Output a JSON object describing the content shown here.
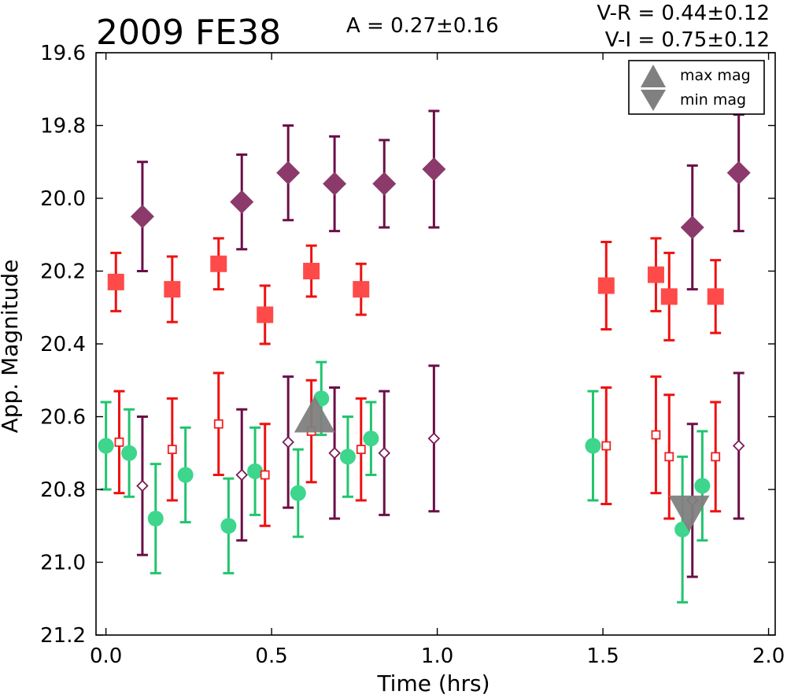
{
  "chart_data": {
    "type": "scatter",
    "title": "2009 FE38",
    "annotations": {
      "amplitude": "A  = 0.27±0.16",
      "v_r": "V-R = 0.44±0.12",
      "v_i": "V-I  = 0.75±0.12"
    },
    "xlabel": "Time (hrs)",
    "ylabel": "App. Magnitude",
    "xlim": [
      -0.03,
      2.02
    ],
    "ylim": [
      21.2,
      19.6
    ],
    "y_inverted": true,
    "grid": false,
    "x_ticks": [
      "0.0",
      "0.5",
      "1.0",
      "1.5",
      "2.0"
    ],
    "x_tick_values": [
      0.0,
      0.5,
      1.0,
      1.5,
      2.0
    ],
    "y_ticks": [
      "19.6",
      "19.8",
      "20.0",
      "20.2",
      "20.4",
      "20.6",
      "20.8",
      "21.0",
      "21.2"
    ],
    "y_tick_values": [
      19.6,
      19.8,
      20.0,
      20.2,
      20.4,
      20.6,
      20.8,
      21.0,
      21.2
    ],
    "legend": {
      "position": "top-right",
      "entries": [
        {
          "label": "max mag",
          "marker": "triangle-up",
          "color": "#808080"
        },
        {
          "label": "min mag",
          "marker": "triangle-down",
          "color": "#808080"
        }
      ]
    },
    "series": [
      {
        "marker": "diamond-filled",
        "color": "#8b3a6b",
        "error_color": "#6b0f47",
        "points": [
          {
            "x": 0.11,
            "y": 20.05,
            "err": 0.15
          },
          {
            "x": 0.41,
            "y": 20.01,
            "err": 0.13
          },
          {
            "x": 0.55,
            "y": 19.93,
            "err": 0.13
          },
          {
            "x": 0.69,
            "y": 19.96,
            "err": 0.13
          },
          {
            "x": 0.84,
            "y": 19.96,
            "err": 0.12
          },
          {
            "x": 0.99,
            "y": 19.92,
            "err": 0.16
          },
          {
            "x": 1.77,
            "y": 20.08,
            "err": 0.17
          },
          {
            "x": 1.91,
            "y": 19.93,
            "err": 0.16
          }
        ]
      },
      {
        "marker": "square-filled",
        "color": "#ff4a4a",
        "error_color": "#ee1111",
        "points": [
          {
            "x": 0.03,
            "y": 20.23,
            "err": 0.08
          },
          {
            "x": 0.2,
            "y": 20.25,
            "err": 0.09
          },
          {
            "x": 0.34,
            "y": 20.18,
            "err": 0.07
          },
          {
            "x": 0.48,
            "y": 20.32,
            "err": 0.08
          },
          {
            "x": 0.62,
            "y": 20.2,
            "err": 0.07
          },
          {
            "x": 0.77,
            "y": 20.25,
            "err": 0.07
          },
          {
            "x": 1.51,
            "y": 20.24,
            "err": 0.12
          },
          {
            "x": 1.66,
            "y": 20.21,
            "err": 0.1
          },
          {
            "x": 1.7,
            "y": 20.27,
            "err": 0.12
          },
          {
            "x": 1.84,
            "y": 20.27,
            "err": 0.1
          }
        ]
      },
      {
        "marker": "circle-filled",
        "color": "#3dd68c",
        "error_color": "#22c46e",
        "points": [
          {
            "x": 0.0,
            "y": 20.68,
            "err": 0.12
          },
          {
            "x": 0.07,
            "y": 20.7,
            "err": 0.12
          },
          {
            "x": 0.15,
            "y": 20.88,
            "err": 0.15
          },
          {
            "x": 0.24,
            "y": 20.76,
            "err": 0.13
          },
          {
            "x": 0.37,
            "y": 20.9,
            "err": 0.13
          },
          {
            "x": 0.45,
            "y": 20.75,
            "err": 0.12
          },
          {
            "x": 0.58,
            "y": 20.81,
            "err": 0.12
          },
          {
            "x": 0.65,
            "y": 20.55,
            "err": 0.1
          },
          {
            "x": 0.73,
            "y": 20.71,
            "err": 0.11
          },
          {
            "x": 0.8,
            "y": 20.66,
            "err": 0.1
          },
          {
            "x": 1.47,
            "y": 20.68,
            "err": 0.15
          },
          {
            "x": 1.74,
            "y": 20.91,
            "err": 0.2
          },
          {
            "x": 1.8,
            "y": 20.79,
            "err": 0.15
          }
        ]
      },
      {
        "marker": "square-open",
        "color": "#ee2222",
        "error_color": "#ee1111",
        "points": [
          {
            "x": 0.04,
            "y": 20.67,
            "err": 0.14
          },
          {
            "x": 0.2,
            "y": 20.69,
            "err": 0.14
          },
          {
            "x": 0.34,
            "y": 20.62,
            "err": 0.14
          },
          {
            "x": 0.48,
            "y": 20.76,
            "err": 0.14
          },
          {
            "x": 0.62,
            "y": 20.64,
            "err": 0.14
          },
          {
            "x": 0.77,
            "y": 20.69,
            "err": 0.14
          },
          {
            "x": 1.51,
            "y": 20.68,
            "err": 0.16
          },
          {
            "x": 1.66,
            "y": 20.65,
            "err": 0.16
          },
          {
            "x": 1.7,
            "y": 20.71,
            "err": 0.17
          },
          {
            "x": 1.84,
            "y": 20.71,
            "err": 0.15
          }
        ]
      },
      {
        "marker": "diamond-open",
        "color": "#7a1a55",
        "error_color": "#6b0f47",
        "points": [
          {
            "x": 0.11,
            "y": 20.79,
            "err": 0.19
          },
          {
            "x": 0.41,
            "y": 20.76,
            "err": 0.18
          },
          {
            "x": 0.55,
            "y": 20.67,
            "err": 0.18
          },
          {
            "x": 0.69,
            "y": 20.7,
            "err": 0.18
          },
          {
            "x": 0.84,
            "y": 20.7,
            "err": 0.17
          },
          {
            "x": 0.99,
            "y": 20.66,
            "err": 0.2
          },
          {
            "x": 1.77,
            "y": 20.83,
            "err": 0.21
          },
          {
            "x": 1.91,
            "y": 20.68,
            "err": 0.2
          }
        ]
      }
    ],
    "extrema": [
      {
        "type": "max",
        "marker": "triangle-up",
        "x": 0.63,
        "y": 20.6,
        "color": "#808080"
      },
      {
        "type": "min",
        "marker": "triangle-down",
        "x": 1.76,
        "y": 20.86,
        "color": "#808080"
      }
    ]
  }
}
